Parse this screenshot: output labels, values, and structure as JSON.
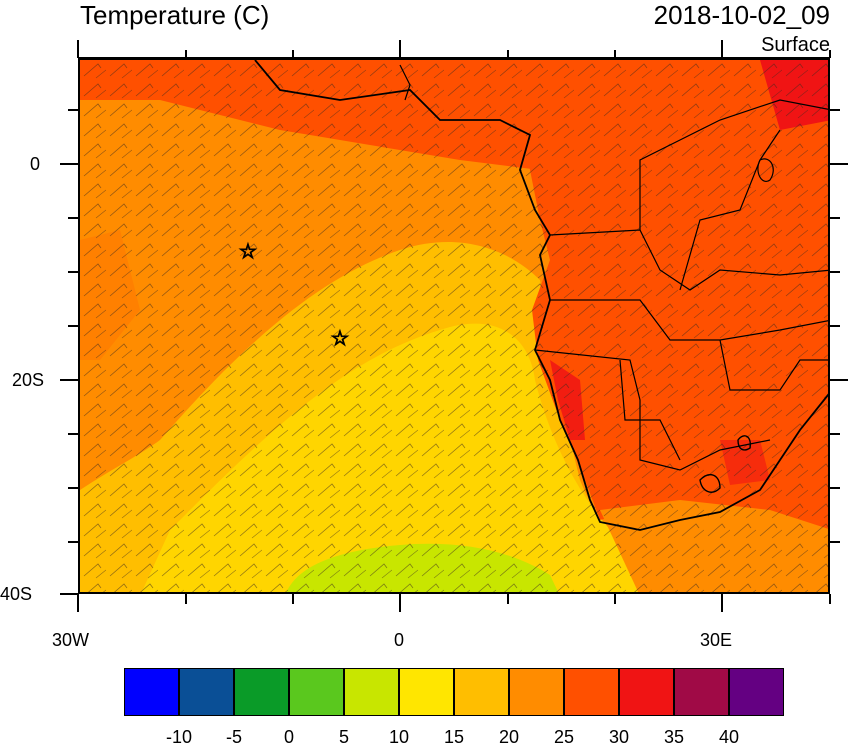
{
  "header": {
    "title": "Temperature (C)",
    "datetime": "2018-10-02_09",
    "level": "Surface"
  },
  "axes": {
    "x_ticks": [
      "30W",
      "0",
      "30E"
    ],
    "y_ticks": [
      "0",
      "20S",
      "40S"
    ]
  },
  "map": {
    "region": "South Atlantic / Southern Africa",
    "lon_range": [
      -30,
      40
    ],
    "lat_range": [
      -40,
      10
    ],
    "field": "surface temperature with wind barbs",
    "markers": [
      {
        "symbol": "star",
        "lon": -13,
        "lat": -8
      },
      {
        "symbol": "star",
        "lon": -5.5,
        "lat": -16
      }
    ]
  },
  "colorbar": {
    "labels": [
      "-10",
      "-5",
      "0",
      "5",
      "10",
      "15",
      "20",
      "25",
      "30",
      "35",
      "40"
    ],
    "colors": [
      "#0000ff",
      "#0a4f96",
      "#0a9b28",
      "#5ac81e",
      "#c8e600",
      "#ffe600",
      "#ffbe00",
      "#ff8c00",
      "#ff5000",
      "#f01414",
      "#a00a46",
      "#640082"
    ]
  }
}
